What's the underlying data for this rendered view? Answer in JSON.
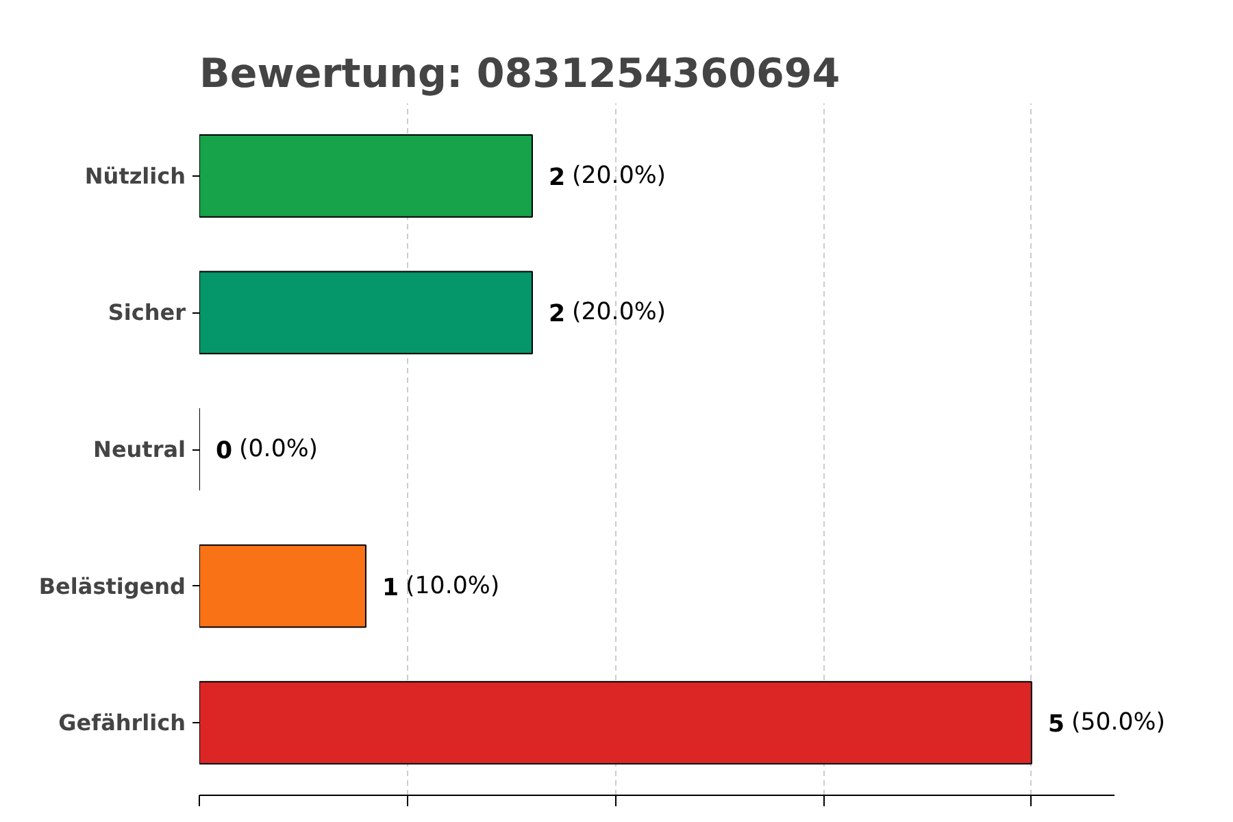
{
  "chart_data": {
    "type": "bar",
    "orientation": "horizontal",
    "title": "Bewertung: 0831254360694",
    "categories": [
      "Nützlich",
      "Sicher",
      "Neutral",
      "Belästigend",
      "Gefährlich"
    ],
    "values": [
      2,
      2,
      0,
      1,
      5
    ],
    "colors": [
      "#16a34a",
      "#059669",
      "#000000",
      "#f97316",
      "#dc2626"
    ],
    "value_labels": [
      "2 (20.0%)",
      "2 (20.0%)",
      "0 (0.0%)",
      "1 (10.0%)",
      "5 (50.0%)"
    ],
    "xlim": [
      0,
      5.5
    ],
    "xticks": [
      {
        "value": 0,
        "label": null
      },
      {
        "value": 1.25,
        "label": null
      },
      {
        "value": 2.5,
        "label": null
      },
      {
        "value": 3.75,
        "label": null
      },
      {
        "value": 5,
        "label": null
      }
    ],
    "tick_labels": "y",
    "grid": "x"
  }
}
